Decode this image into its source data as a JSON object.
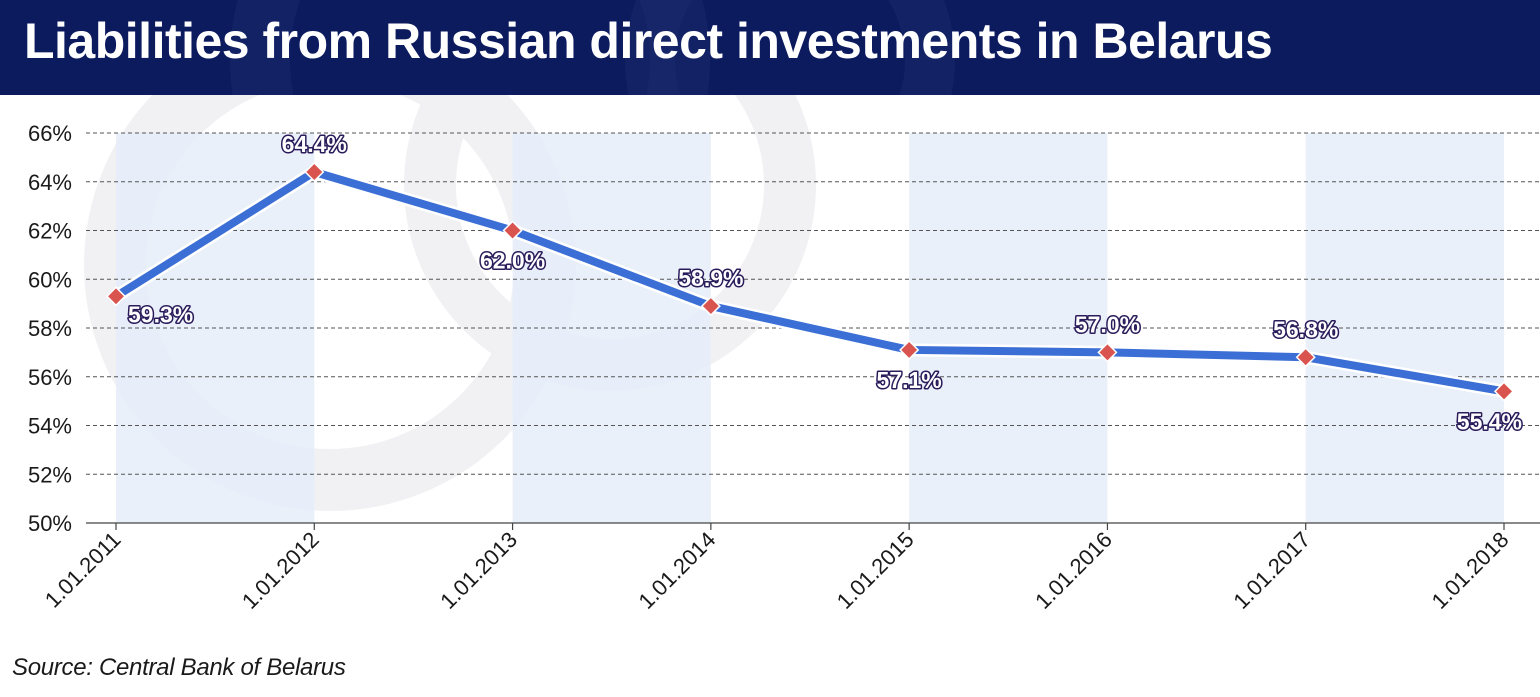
{
  "header": {
    "title": "Liabilities from Russian direct investments in Belarus"
  },
  "footer": {
    "source": "Source: Central Bank of Belarus"
  },
  "colors": {
    "header_bg": "#0c1a5e",
    "line": "#3b6fd6",
    "marker": "#d9534f",
    "band": "#e6edf9",
    "watermark": "#f1f1f3"
  },
  "chart_data": {
    "type": "line",
    "title": "Liabilities from Russian direct investments in Belarus",
    "xlabel": "",
    "ylabel": "",
    "categories": [
      "1.01.2011",
      "1.01.2012",
      "1.01.2013",
      "1.01.2014",
      "1.01.2015",
      "1.01.2016",
      "1.01.2017",
      "1.01.2018"
    ],
    "values": [
      59.3,
      64.4,
      62.0,
      58.9,
      57.1,
      57.0,
      56.8,
      55.4
    ],
    "data_labels": [
      "59.3%",
      "64.4%",
      "62.0%",
      "58.9%",
      "57.1%",
      "57.0%",
      "56.8%",
      "55.4%"
    ],
    "ylim": [
      50,
      66
    ],
    "yticks": [
      50,
      52,
      54,
      56,
      58,
      60,
      62,
      64,
      66
    ],
    "ytick_labels": [
      "50%",
      "52%",
      "54%",
      "56%",
      "58%",
      "60%",
      "62%",
      "64%",
      "66%"
    ],
    "grid": true,
    "legend": "none"
  }
}
